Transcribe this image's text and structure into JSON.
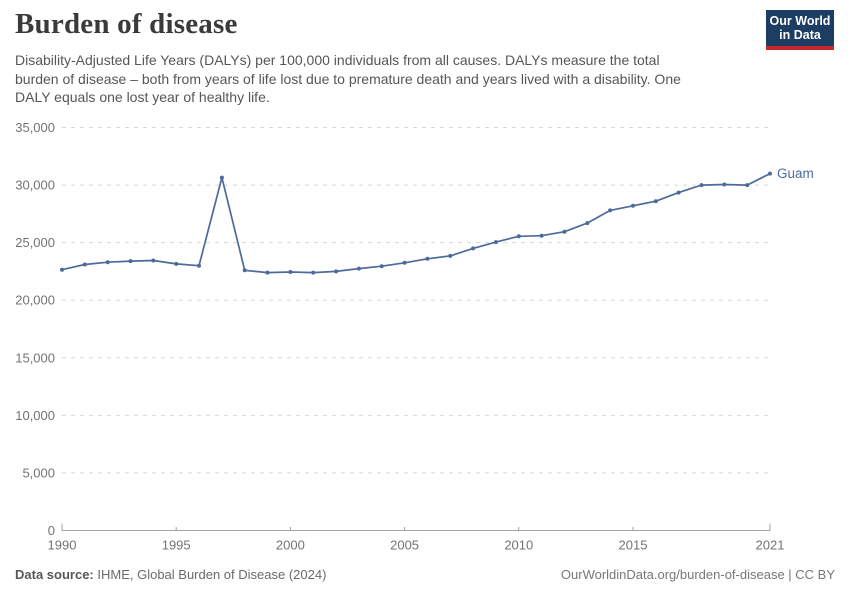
{
  "header": {
    "title": "Burden of disease",
    "subtitle_lines": [
      "Disability-Adjusted Life Years (DALYs) per 100,000 individuals from all causes. DALYs measure the total",
      "burden of disease – both from years of life lost due to premature death and years lived with a disability. One",
      "DALY equals one lost year of healthy life."
    ],
    "logo": {
      "line1": "Our World",
      "line2": "in Data"
    }
  },
  "footer": {
    "source_label": "Data source:",
    "source_text": " IHME, Global Burden of Disease (2024)",
    "link_text": "OurWorldinData.org/burden-of-disease | CC BY"
  },
  "colors": {
    "series_blue": "#4C6A9C",
    "logo_navy": "#1d3d63",
    "logo_red": "#c5292a",
    "grid": "#d8d8d8",
    "axis": "#a3a3a3",
    "tick_label": "#737373",
    "title_text": "#3a3a3a",
    "subtitle_text": "#565656"
  },
  "chart_data": {
    "type": "line",
    "title": "Burden of disease",
    "xlabel": "",
    "ylabel": "DALYs per 100,000 individuals",
    "x": [
      1990,
      1991,
      1992,
      1993,
      1994,
      1995,
      1996,
      1997,
      1998,
      1999,
      2000,
      2001,
      2002,
      2003,
      2004,
      2005,
      2006,
      2007,
      2008,
      2009,
      2010,
      2011,
      2012,
      2013,
      2014,
      2015,
      2016,
      2017,
      2018,
      2019,
      2020,
      2021
    ],
    "series": [
      {
        "name": "Guam",
        "color": "#4C6A9C",
        "values": [
          22650,
          23100,
          23300,
          23400,
          23450,
          23150,
          23000,
          30650,
          22600,
          22400,
          22450,
          22400,
          22500,
          22750,
          22950,
          23250,
          23600,
          23850,
          24500,
          25050,
          25550,
          25600,
          25950,
          26700,
          27800,
          28200,
          28600,
          29350,
          30000,
          30050,
          30000,
          31000
        ]
      }
    ],
    "x_ticks": [
      1990,
      1995,
      2000,
      2005,
      2010,
      2015,
      2021
    ],
    "y_ticks": [
      0,
      5000,
      10000,
      15000,
      20000,
      25000,
      30000,
      35000
    ],
    "xlim": [
      1990,
      2021
    ],
    "ylim": [
      0,
      35000
    ],
    "grid": "horizontal-dashed",
    "legend_position": "end-of-line",
    "end_label": "Guam",
    "markers": true
  }
}
